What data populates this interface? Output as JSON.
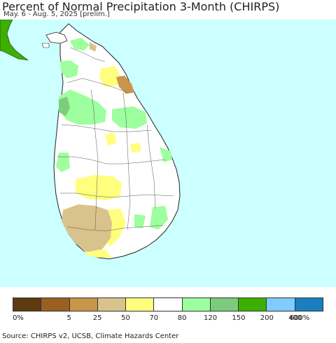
{
  "title": "Percent of Normal Precipitation 3-Month (CHIRPS)",
  "subtitle": "May. 6 - Aug. 5, 2025 [prelim.]",
  "source": "Source: CHIRPS v2, UCSB, Climate Hazards Center",
  "colors": {
    "ocean": "#ccffff",
    "land_normal": "#ffffff",
    "india": "#3cb000",
    "border": "#222222"
  },
  "legend": {
    "colors": [
      "#5c3c10",
      "#99601f",
      "#c8954a",
      "#d9c38c",
      "#ffff7d",
      "#ffffff",
      "#9dff9d",
      "#7dcc7d",
      "#3cb000",
      "#80ccff",
      "#1a7fc0"
    ],
    "tick_labels": [
      "0%",
      "5",
      "25",
      "50",
      "70",
      "80",
      "120",
      "150",
      "200",
      "400",
      "600%"
    ]
  }
}
